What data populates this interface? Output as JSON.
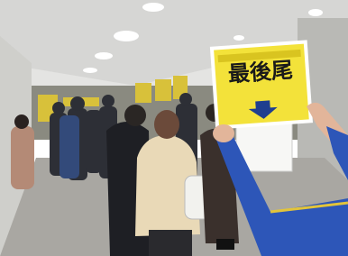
{
  "sign": {
    "text": "最後尾"
  }
}
